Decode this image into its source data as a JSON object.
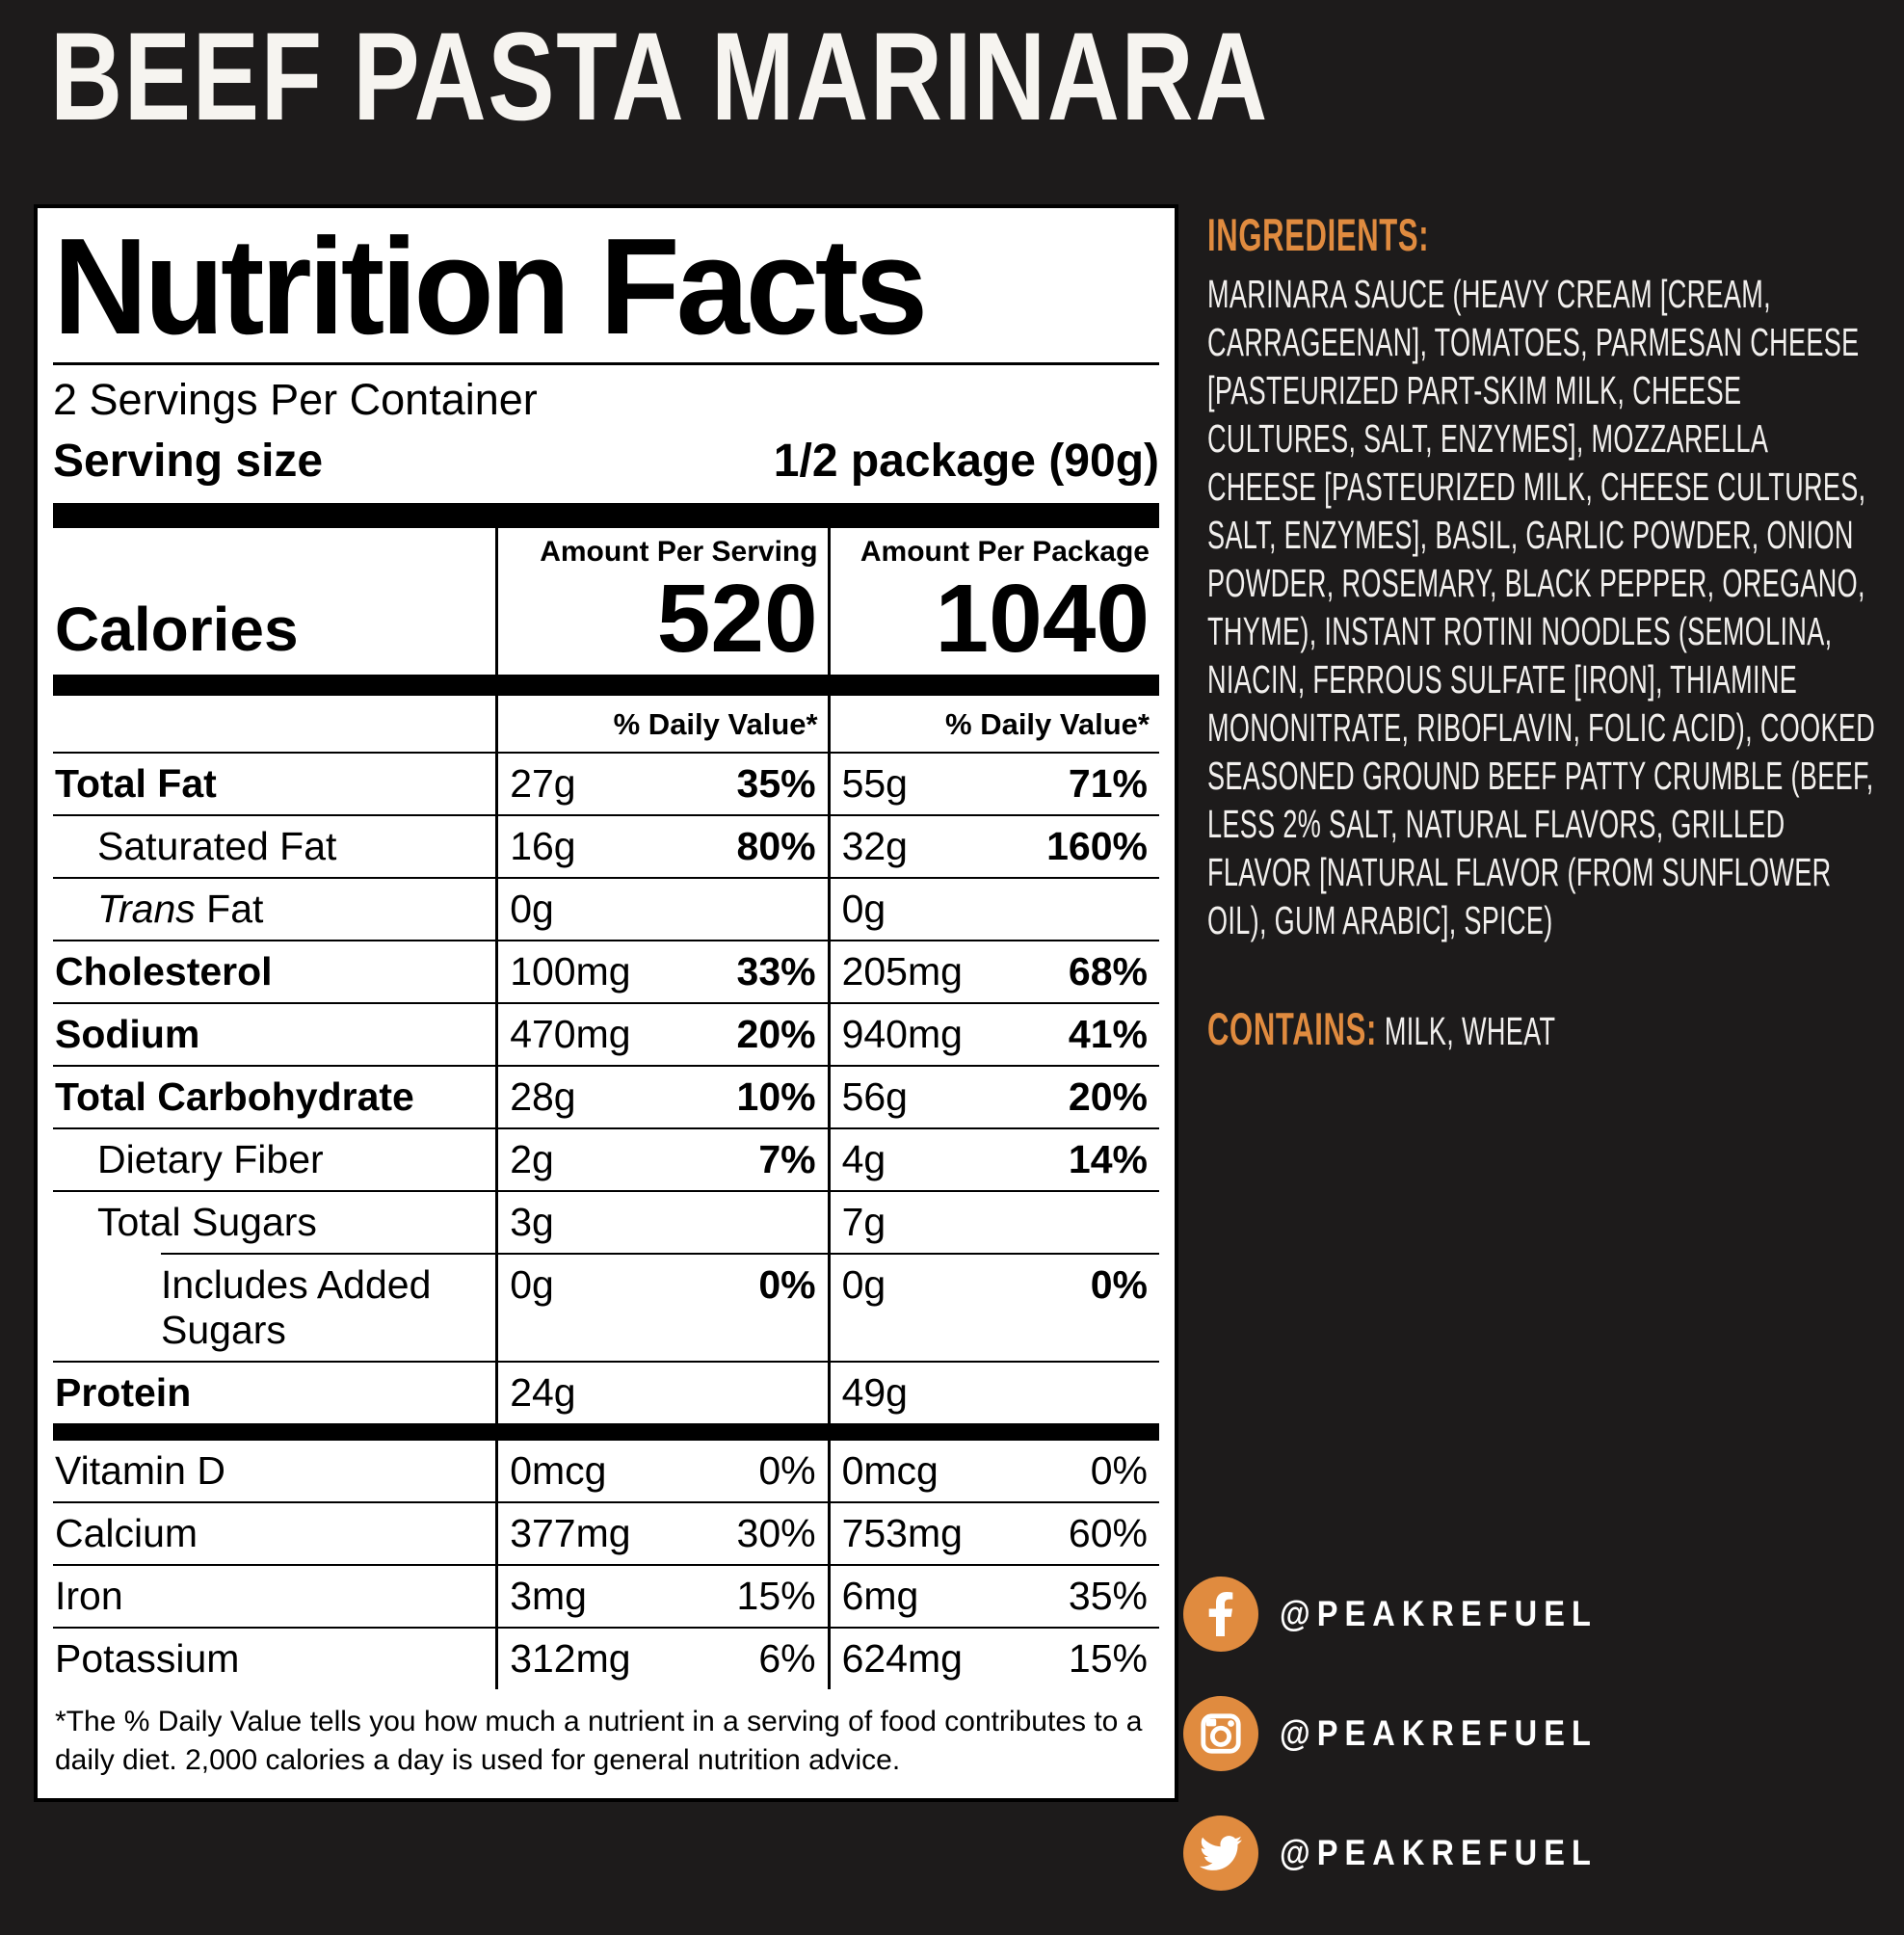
{
  "colors": {
    "background": "#1d1b1b",
    "accent": "#e08b3f",
    "panel": "#ffffff",
    "light_text": "#f2f0ee"
  },
  "title": "BEEF PASTA MARINARA",
  "nutrition": {
    "heading": "Nutrition Facts",
    "servings_per_container": "2 Servings Per Container",
    "serving_size_label": "Serving size",
    "serving_size_value": "1/2 package (90g)",
    "amount_per_serving_header": "Amount Per Serving",
    "amount_per_package_header": "Amount Per Package",
    "calories_label": "Calories",
    "calories_per_serving": "520",
    "calories_per_package": "1040",
    "daily_value_header": "% Daily Value*",
    "rows": [
      {
        "label": "Total Fat",
        "bold": true,
        "indent": 0,
        "serving_amount": "27g",
        "serving_dv": "35%",
        "package_amount": "55g",
        "package_dv": "71%"
      },
      {
        "label": "Saturated Fat",
        "bold": false,
        "indent": 1,
        "serving_amount": "16g",
        "serving_dv": "80%",
        "package_amount": "32g",
        "package_dv": "160%"
      },
      {
        "label": "Trans Fat",
        "italic_prefix": "Trans",
        "bold": false,
        "indent": 1,
        "serving_amount": "0g",
        "serving_dv": "",
        "package_amount": "0g",
        "package_dv": ""
      },
      {
        "label": "Cholesterol",
        "bold": true,
        "indent": 0,
        "serving_amount": "100mg",
        "serving_dv": "33%",
        "package_amount": "205mg",
        "package_dv": "68%"
      },
      {
        "label": "Sodium",
        "bold": true,
        "indent": 0,
        "serving_amount": "470mg",
        "serving_dv": "20%",
        "package_amount": "940mg",
        "package_dv": "41%"
      },
      {
        "label": "Total Carbohydrate",
        "bold": true,
        "indent": 0,
        "serving_amount": "28g",
        "serving_dv": "10%",
        "package_amount": "56g",
        "package_dv": "20%"
      },
      {
        "label": "Dietary Fiber",
        "bold": false,
        "indent": 1,
        "serving_amount": "2g",
        "serving_dv": "7%",
        "package_amount": "4g",
        "package_dv": "14%"
      },
      {
        "label": "Total Sugars",
        "bold": false,
        "indent": 1,
        "partial_rule_below": true,
        "serving_amount": "3g",
        "serving_dv": "",
        "package_amount": "7g",
        "package_dv": ""
      },
      {
        "label": "Includes Added Sugars",
        "bold": false,
        "indent": 2,
        "serving_amount": "0g",
        "serving_dv": "0%",
        "package_amount": "0g",
        "package_dv": "0%"
      },
      {
        "label": "Protein",
        "bold": true,
        "indent": 0,
        "serving_amount": "24g",
        "serving_dv": "",
        "package_amount": "49g",
        "package_dv": ""
      }
    ],
    "micro_rows": [
      {
        "label": "Vitamin D",
        "serving_amount": "0mcg",
        "serving_dv": "0%",
        "package_amount": "0mcg",
        "package_dv": "0%"
      },
      {
        "label": "Calcium",
        "serving_amount": "377mg",
        "serving_dv": "30%",
        "package_amount": "753mg",
        "package_dv": "60%"
      },
      {
        "label": "Iron",
        "serving_amount": "3mg",
        "serving_dv": "15%",
        "package_amount": "6mg",
        "package_dv": "35%"
      },
      {
        "label": "Potassium",
        "serving_amount": "312mg",
        "serving_dv": "6%",
        "package_amount": "624mg",
        "package_dv": "15%"
      }
    ],
    "footnote": "*The % Daily Value tells you how much a nutrient in a serving of food contributes to a daily diet. 2,000 calories a day is used for general nutrition advice."
  },
  "ingredients": {
    "heading": "INGREDIENTS:",
    "text": "MARINARA SAUCE (HEAVY CREAM [CREAM, CARRAGEENAN], TOMATOES, PARMESAN CHEESE [PASTEURIZED PART-SKIM MILK, CHEESE CULTURES, SALT, ENZYMES], MOZZARELLA CHEESE [PASTEURIZED MILK, CHEESE CULTURES, SALT, ENZYMES], BASIL, GARLIC POWDER, ONION POWDER, ROSEMARY, BLACK PEPPER, OREGANO, THYME), INSTANT ROTINI NOODLES (SEMOLINA, NIACIN, FERROUS SULFATE [IRON], THIAMINE MONONITRATE, RIBOFLAVIN, FOLIC ACID), COOKED SEASONED GROUND BEEF PATTY CRUMBLE (BEEF, LESS 2% SALT, NATURAL FLAVORS, GRILLED FLAVOR [NATURAL FLAVOR (FROM SUNFLOWER OIL), GUM ARABIC], SPICE)"
  },
  "contains": {
    "label": "CONTAINS:",
    "value": "MILK, WHEAT"
  },
  "social": [
    {
      "network": "facebook",
      "handle": "@PEAKREFUEL"
    },
    {
      "network": "instagram",
      "handle": "@PEAKREFUEL"
    },
    {
      "network": "twitter",
      "handle": "@PEAKREFUEL"
    }
  ]
}
